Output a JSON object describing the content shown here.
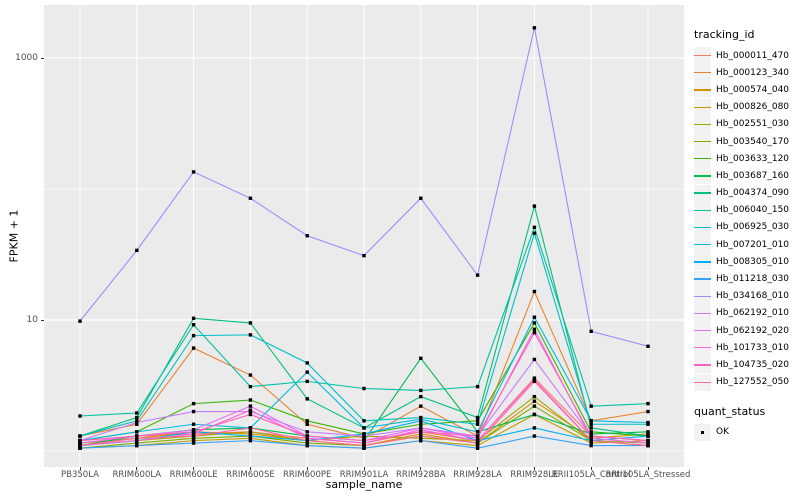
{
  "ui": {
    "background": "#FFFFFF",
    "panel_bg": "#EBEBEB",
    "grid_color": "#FFFFFF",
    "axis_text_color": "#4D4D4D",
    "tick_mark_color": "#333333",
    "legend_key_bg": "#F2F2F2",
    "point_color": "#000000",
    "point_shape": "square"
  },
  "chart_data": {
    "type": "line",
    "title": "",
    "xlabel": "sample_name",
    "ylabel": "FPKM + 1",
    "y_scale": "log10",
    "ylim": [
      0.75,
      2500
    ],
    "y_ticks": {
      "values": [
        10,
        1000
      ],
      "labels": [
        "10",
        "1000"
      ]
    },
    "y_gridlines_major": [
      10,
      1000
    ],
    "y_gridlines_minor": [
      1,
      100
    ],
    "grid": "on",
    "legend": {
      "title": "tracking_id",
      "position": "right"
    },
    "quant_status": {
      "title": "quant_status",
      "entries": [
        {
          "label": "OK",
          "shape": "square",
          "color": "#000000"
        }
      ]
    },
    "categories": [
      "PB350LA",
      "RRIM600LA",
      "RRIM600LE",
      "RRIM600SE",
      "RRIM600PE",
      "RRIM901LA",
      "RRIM928BA",
      "RRIM928LA",
      "RRIM928LE",
      "RRII105LA_Control",
      "RRII105LA_Stressed"
    ],
    "series": [
      {
        "name": "Hb_000011_470",
        "color": "#F8766D",
        "values": [
          1.2,
          1.3,
          1.35,
          1.4,
          1.25,
          1.15,
          1.4,
          1.2,
          3.6,
          1.3,
          1.2
        ]
      },
      {
        "name": "Hb_000123_340",
        "color": "#EA8331",
        "values": [
          1.3,
          1.6,
          6.1,
          3.8,
          1.6,
          1.25,
          2.2,
          1.3,
          16.5,
          1.7,
          2.0
        ]
      },
      {
        "name": "Hb_000574_040",
        "color": "#D89000",
        "values": [
          1.15,
          1.25,
          1.4,
          1.35,
          1.2,
          1.1,
          1.35,
          1.15,
          2.4,
          1.25,
          1.35
        ]
      },
      {
        "name": "Hb_000826_080",
        "color": "#C09B00",
        "values": [
          1.05,
          1.1,
          1.2,
          1.25,
          1.1,
          1.05,
          1.2,
          1.1,
          1.9,
          1.15,
          1.2
        ]
      },
      {
        "name": "Hb_002551_030",
        "color": "#A3A500",
        "values": [
          1.1,
          1.2,
          1.3,
          1.4,
          1.2,
          1.3,
          1.25,
          1.2,
          2.6,
          1.2,
          1.15
        ]
      },
      {
        "name": "Hb_003540_170",
        "color": "#7CAE00",
        "values": [
          1.05,
          1.15,
          1.25,
          1.3,
          1.15,
          1.1,
          1.3,
          1.15,
          2.2,
          1.2,
          1.1
        ]
      },
      {
        "name": "Hb_003633_120",
        "color": "#39B600",
        "values": [
          1.2,
          1.4,
          2.3,
          2.45,
          1.7,
          1.35,
          1.6,
          1.7,
          9.5,
          1.4,
          1.3
        ]
      },
      {
        "name": "Hb_003687_160",
        "color": "#00BB4E",
        "values": [
          1.1,
          1.3,
          1.45,
          1.5,
          1.3,
          1.2,
          5.1,
          1.4,
          1.9,
          1.35,
          1.4
        ]
      },
      {
        "name": "Hb_004374_090",
        "color": "#00BF7D",
        "values": [
          1.3,
          1.8,
          10.3,
          9.5,
          2.5,
          1.5,
          2.6,
          1.8,
          74,
          1.5,
          1.3
        ]
      },
      {
        "name": "Hb_006040_150",
        "color": "#00C1A3",
        "values": [
          1.85,
          1.95,
          9.2,
          3.1,
          3.4,
          3.0,
          2.9,
          3.1,
          51,
          2.2,
          2.3
        ]
      },
      {
        "name": "Hb_006925_030",
        "color": "#00BFC4",
        "values": [
          1.3,
          1.7,
          7.6,
          7.7,
          4.7,
          1.7,
          1.8,
          1.6,
          46,
          1.6,
          1.6
        ]
      },
      {
        "name": "Hb_007201_010",
        "color": "#00BAE0",
        "values": [
          1.2,
          1.4,
          1.6,
          1.5,
          4.0,
          1.5,
          1.75,
          1.4,
          10.5,
          1.7,
          1.65
        ]
      },
      {
        "name": "Hb_008305_010",
        "color": "#00B0F6",
        "values": [
          1.1,
          1.2,
          1.4,
          1.3,
          1.2,
          1.35,
          1.7,
          1.2,
          1.5,
          1.2,
          1.3
        ]
      },
      {
        "name": "Hb_011218_030",
        "color": "#35A2FF",
        "values": [
          1.05,
          1.1,
          1.15,
          1.2,
          1.1,
          1.05,
          1.2,
          1.05,
          1.3,
          1.1,
          1.1
        ]
      },
      {
        "name": "Hb_034168_010",
        "color": "#9590FF",
        "values": [
          9.8,
          34,
          135,
          85,
          44,
          31,
          85,
          22,
          1700,
          8.2,
          6.3
        ]
      },
      {
        "name": "Hb_062192_010",
        "color": "#C77CFF",
        "values": [
          1.2,
          1.65,
          2.0,
          2.0,
          1.4,
          1.3,
          1.5,
          1.3,
          5.0,
          1.3,
          1.2
        ]
      },
      {
        "name": "Hb_062192_020",
        "color": "#E76BF3",
        "values": [
          1.15,
          1.3,
          1.45,
          2.2,
          1.3,
          1.2,
          1.5,
          1.25,
          8.5,
          1.25,
          1.15
        ]
      },
      {
        "name": "Hb_101733_010",
        "color": "#FA62DB",
        "values": [
          1.1,
          1.2,
          1.35,
          2.05,
          1.25,
          1.15,
          1.45,
          1.2,
          3.5,
          1.2,
          1.1
        ]
      },
      {
        "name": "Hb_104735_020",
        "color": "#FF62BC",
        "values": [
          1.2,
          1.3,
          1.4,
          1.9,
          1.3,
          1.2,
          1.4,
          1.3,
          8.0,
          1.3,
          1.2
        ]
      },
      {
        "name": "Hb_127552_050",
        "color": "#FF6A98",
        "values": [
          1.1,
          1.25,
          1.3,
          1.5,
          1.2,
          1.1,
          1.3,
          1.15,
          3.4,
          1.2,
          1.1
        ]
      }
    ]
  }
}
